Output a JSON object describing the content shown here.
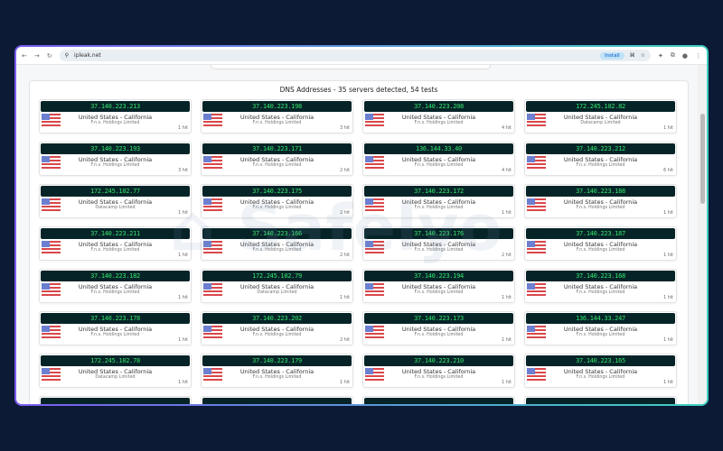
{
  "browser": {
    "url": "ipleak.net",
    "install_label": "Install"
  },
  "panel": {
    "title": "DNS Addresses - 35 servers detected, 54 tests"
  },
  "watermark": "Safelyo",
  "colors": {
    "ip_bg": "#062428",
    "ip_text": "#34e36a"
  },
  "servers": [
    {
      "ip": "37.140.223.213",
      "loc": "United States - California",
      "isp": "F.n.s. Holdings Limited",
      "hits": "1 hit"
    },
    {
      "ip": "37.140.223.198",
      "loc": "United States - California",
      "isp": "F.n.s. Holdings Limited",
      "hits": "3 hit"
    },
    {
      "ip": "37.140.223.208",
      "loc": "United States - California",
      "isp": "F.n.s. Holdings Limited",
      "hits": "4 hit"
    },
    {
      "ip": "172.245.102.82",
      "loc": "United States - California",
      "isp": "Datacamp Limited",
      "hits": "1 hit"
    },
    {
      "ip": "37.140.223.193",
      "loc": "United States - California",
      "isp": "F.n.s. Holdings Limited",
      "hits": "3 hit"
    },
    {
      "ip": "37.140.223.171",
      "loc": "United States - California",
      "isp": "F.n.s. Holdings Limited",
      "hits": "2 hit"
    },
    {
      "ip": "136.144.33.40",
      "loc": "United States - California",
      "isp": "F.n.s. Holdings Limited",
      "hits": "4 hit"
    },
    {
      "ip": "37.140.223.212",
      "loc": "United States - California",
      "isp": "F.n.s. Holdings Limited",
      "hits": "6 hit"
    },
    {
      "ip": "172.245.102.77",
      "loc": "United States - California",
      "isp": "Datacamp Limited",
      "hits": "1 hit"
    },
    {
      "ip": "37.140.223.175",
      "loc": "United States - California",
      "isp": "F.n.s. Holdings Limited",
      "hits": "2 hit"
    },
    {
      "ip": "37.140.223.172",
      "loc": "United States - California",
      "isp": "F.n.s. Holdings Limited",
      "hits": "1 hit"
    },
    {
      "ip": "37.140.223.188",
      "loc": "United States - California",
      "isp": "F.n.s. Holdings Limited",
      "hits": "1 hit"
    },
    {
      "ip": "37.140.223.211",
      "loc": "United States - California",
      "isp": "F.n.s. Holdings Limited",
      "hits": "1 hit"
    },
    {
      "ip": "37.140.223.166",
      "loc": "United States - California",
      "isp": "F.n.s. Holdings Limited",
      "hits": "2 hit"
    },
    {
      "ip": "37.140.223.176",
      "loc": "United States - California",
      "isp": "F.n.s. Holdings Limited",
      "hits": "2 hit"
    },
    {
      "ip": "37.140.223.187",
      "loc": "United States - California",
      "isp": "F.n.s. Holdings Limited",
      "hits": "1 hit"
    },
    {
      "ip": "37.140.223.182",
      "loc": "United States - California",
      "isp": "F.n.s. Holdings Limited",
      "hits": "1 hit"
    },
    {
      "ip": "172.245.102.79",
      "loc": "United States - California",
      "isp": "Datacamp Limited",
      "hits": "1 hit"
    },
    {
      "ip": "37.140.223.194",
      "loc": "United States - California",
      "isp": "F.n.s. Holdings Limited",
      "hits": "1 hit"
    },
    {
      "ip": "37.140.223.168",
      "loc": "United States - California",
      "isp": "F.n.s. Holdings Limited",
      "hits": "1 hit"
    },
    {
      "ip": "37.140.223.178",
      "loc": "United States - California",
      "isp": "F.n.s. Holdings Limited",
      "hits": "1 hit"
    },
    {
      "ip": "37.140.223.202",
      "loc": "United States - California",
      "isp": "F.n.s. Holdings Limited",
      "hits": "2 hit"
    },
    {
      "ip": "37.140.223.173",
      "loc": "United States - California",
      "isp": "F.n.s. Holdings Limited",
      "hits": "1 hit"
    },
    {
      "ip": "136.144.33.247",
      "loc": "United States - California",
      "isp": "F.n.s. Holdings Limited",
      "hits": "1 hit"
    },
    {
      "ip": "172.245.102.78",
      "loc": "United States - California",
      "isp": "Datacamp Limited",
      "hits": "1 hit"
    },
    {
      "ip": "37.140.223.179",
      "loc": "United States - California",
      "isp": "F.n.s. Holdings Limited",
      "hits": "1 hit"
    },
    {
      "ip": "37.140.223.210",
      "loc": "United States - California",
      "isp": "F.n.s. Holdings Limited",
      "hits": "1 hit"
    },
    {
      "ip": "37.140.223.165",
      "loc": "United States - California",
      "isp": "F.n.s. Holdings Limited",
      "hits": "1 hit"
    }
  ]
}
